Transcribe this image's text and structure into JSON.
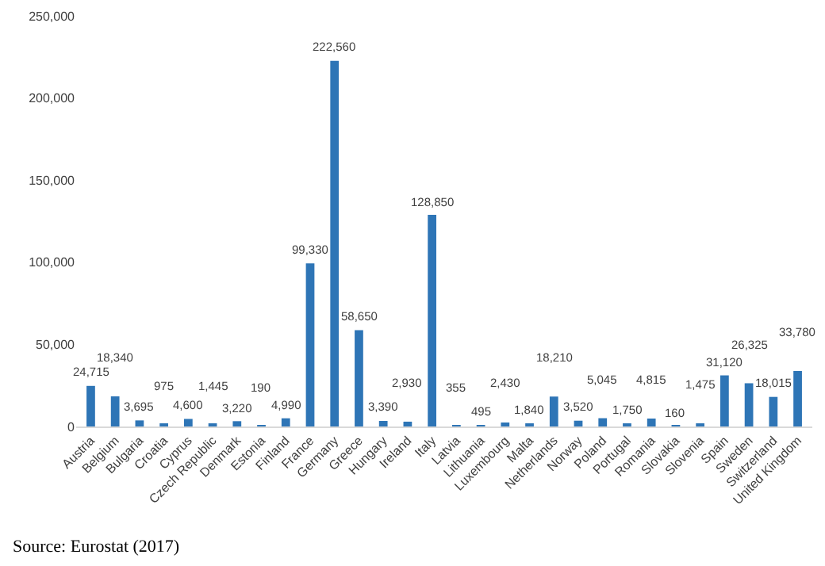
{
  "chart_data": {
    "type": "bar",
    "categories": [
      "Austria",
      "Belgium",
      "Bulgaria",
      "Croatia",
      "Cyprus",
      "Czech Republic",
      "Denmark",
      "Estonia",
      "Finland",
      "France",
      "Germany",
      "Greece",
      "Hungary",
      "Ireland",
      "Italy",
      "Latvia",
      "Lithuania",
      "Luxembourg",
      "Malta",
      "Netherlands",
      "Norway",
      "Poland",
      "Portugal",
      "Romania",
      "Slovakia",
      "Slovenia",
      "Spain",
      "Sweden",
      "Switzerland",
      "United Kingdom"
    ],
    "values": [
      24715,
      18340,
      3695,
      975,
      4600,
      1445,
      3220,
      190,
      4990,
      99330,
      222560,
      58650,
      3390,
      2930,
      128850,
      355,
      495,
      2430,
      1840,
      18210,
      3520,
      5045,
      1750,
      4815,
      160,
      1475,
      31120,
      26325,
      18015,
      33780
    ],
    "value_labels": [
      "24,715",
      "18,340",
      "3,695",
      "975",
      "4,600",
      "1,445",
      "3,220",
      "190",
      "4,990",
      "99,330",
      "222,560",
      "58,650",
      "3,390",
      "2,930",
      "128,850",
      "355",
      "495",
      "2,430",
      "1,840",
      "18,210",
      "3,520",
      "5,045",
      "1,750",
      "4,815",
      "160",
      "1,475",
      "31,120",
      "26,325",
      "18,015",
      "33,780"
    ],
    "color": "#2e75b6",
    "grid": false,
    "ylim": [
      0,
      250000
    ],
    "yticks": [
      {
        "value": 0,
        "label": "0"
      },
      {
        "value": 50000,
        "label": "50,000"
      },
      {
        "value": 100000,
        "label": "100,000"
      },
      {
        "value": 150000,
        "label": "150,000"
      },
      {
        "value": 200000,
        "label": "200,000"
      },
      {
        "value": 250000,
        "label": "250,000"
      }
    ],
    "annotations": [
      "Source: Eurostat (2017)"
    ]
  }
}
